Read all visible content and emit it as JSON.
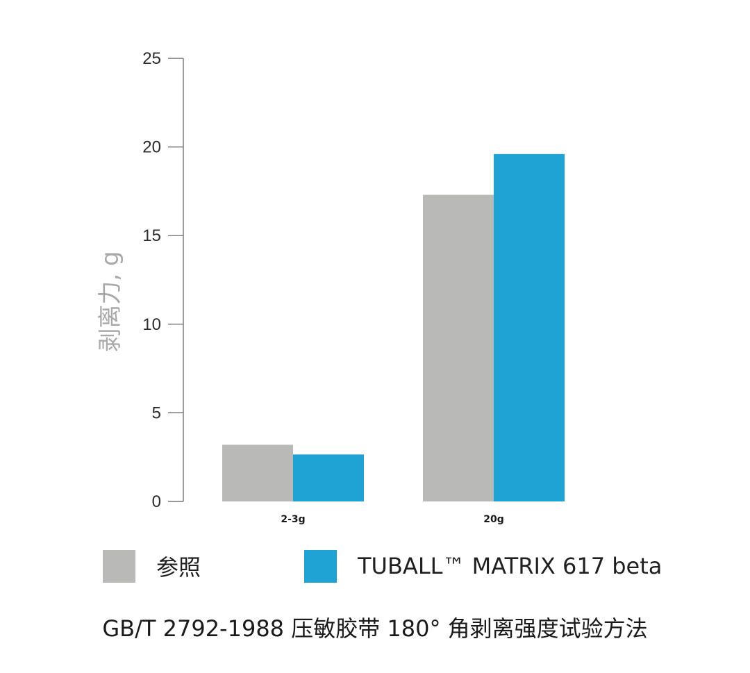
{
  "chart_data": {
    "type": "bar",
    "ylabel": "剥离力, g",
    "xlabel": "",
    "ylim": [
      0,
      25
    ],
    "yticks": [
      "0",
      "5",
      "10",
      "15",
      "20",
      "25"
    ],
    "categories": [
      "2-3g",
      "20g"
    ],
    "series": [
      {
        "name": "参照",
        "values": [
          3.2,
          17.3
        ]
      },
      {
        "name": "TUBALL™ MATRIX 617 beta",
        "values": [
          2.65,
          19.6
        ]
      }
    ],
    "colors": [
      "#b9bab8",
      "#1fa3d5"
    ],
    "grid": false,
    "legend_position": "bottom"
  },
  "footer": {
    "text": "GB/T 2792-1988 压敏胶带 180° 角剥离强度试验方法"
  }
}
